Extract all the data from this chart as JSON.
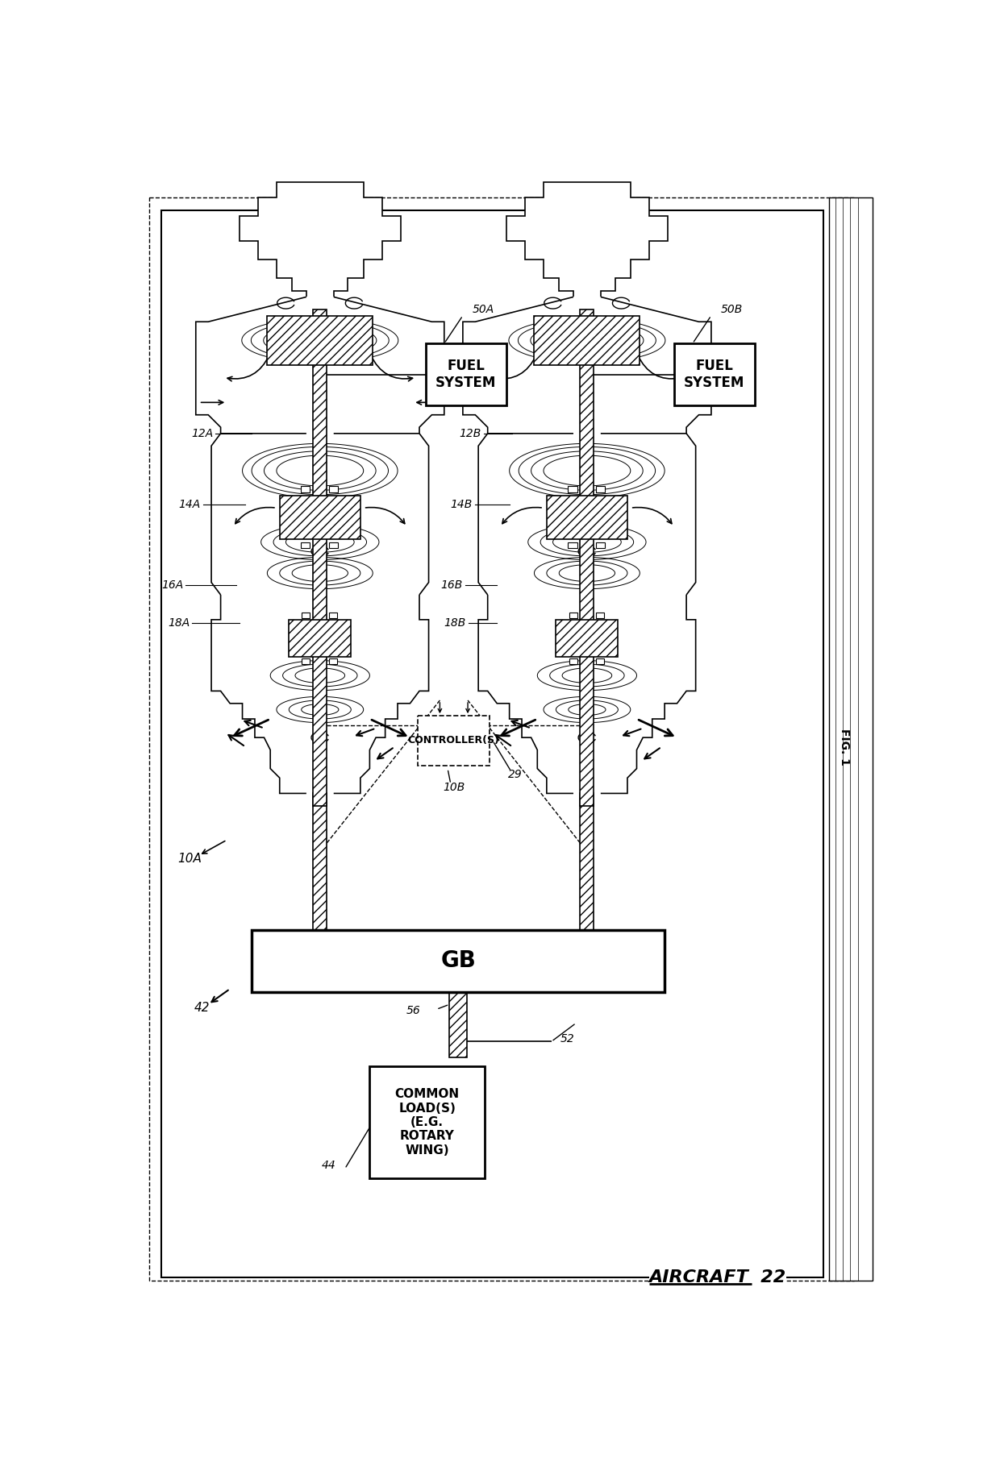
{
  "bg_color": "#ffffff",
  "lc": "#000000",
  "fig_label": "FIG. 1",
  "aircraft_label": "AIRCRAFT",
  "aircraft_num": "22",
  "label_10A": "10A",
  "label_10B": "10B",
  "label_12A": "12A",
  "label_12B": "12B",
  "label_14A": "14A",
  "label_14B": "14B",
  "label_16A": "16A",
  "label_16B": "16B",
  "label_18A": "18A",
  "label_18B": "18B",
  "label_29": "29",
  "label_42": "42",
  "label_44": "44",
  "label_50A": "50A",
  "label_50B": "50B",
  "label_52": "52",
  "label_56": "56",
  "fuel_system_text": "FUEL\nSYSTEM",
  "controller_text": "CONTROLLER(S)",
  "gb_text": "GB",
  "common_load_text": "COMMON\nLOAD(S)\n(E.G.\nROTARY\nWING)"
}
